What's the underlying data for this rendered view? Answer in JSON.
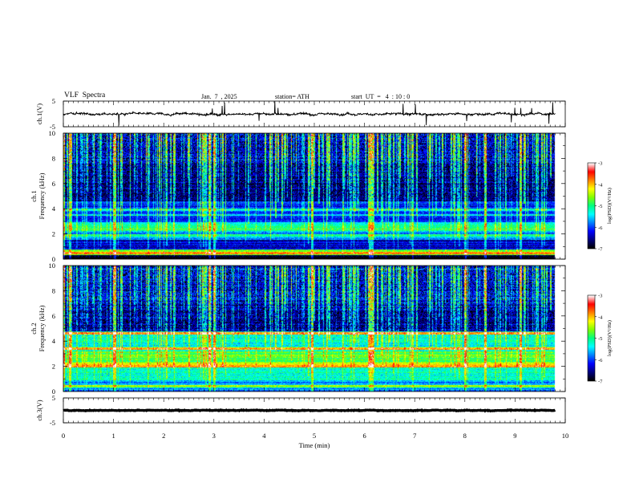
{
  "header": {
    "title": "VLF  Spectra",
    "date": "Jan.  7  , 2025",
    "station": "station= ATH",
    "start": "start  UT  =   4  : 10 : 0"
  },
  "chart_data": {
    "type": "spectrogram",
    "xlabel": "Time  (min)",
    "xlim": [
      0,
      10
    ],
    "xticks": [
      "0",
      "1",
      "2",
      "3",
      "4",
      "5",
      "6",
      "7",
      "8",
      "9",
      "10"
    ],
    "panels": [
      {
        "id": "ch1-waveform",
        "type": "line",
        "ylabel": "ch.1(V)",
        "ylim": [
          -5,
          5
        ],
        "yticks": [
          "5",
          "-5"
        ],
        "baseline_v": 0,
        "noise_amplitude_v": 1.1,
        "data_end_min": 9.8
      },
      {
        "id": "ch1-spectrogram",
        "type": "heatmap",
        "ylabel": "ch.1\nFrequency  (kHz)",
        "ylim": [
          0,
          10
        ],
        "yticks": [
          "0",
          "2",
          "4",
          "6",
          "8",
          "10"
        ],
        "data_end_min": 9.8,
        "bands_khz": [
          {
            "from": 0.0,
            "to": 0.35,
            "level": -7.0
          },
          {
            "from": 0.35,
            "to": 0.75,
            "level": -4.6
          },
          {
            "from": 0.75,
            "to": 1.5,
            "level": -6.4
          },
          {
            "from": 1.5,
            "to": 2.3,
            "level": -5.8
          },
          {
            "from": 2.3,
            "to": 2.9,
            "level": -5.2
          },
          {
            "from": 2.9,
            "to": 4.6,
            "level": -6.1
          },
          {
            "from": 4.6,
            "to": 7.5,
            "level": -6.5
          },
          {
            "from": 7.5,
            "to": 10.0,
            "level": -6.2
          }
        ],
        "lines_khz": [
          {
            "f": 0.5,
            "level": -3.9
          },
          {
            "f": 1.9,
            "level": -5.0
          },
          {
            "f": 2.3,
            "level": -4.8
          },
          {
            "f": 3.5,
            "level": -5.5
          },
          {
            "f": 3.9,
            "level": -5.3
          }
        ]
      },
      {
        "id": "ch2-spectrogram",
        "type": "heatmap",
        "ylabel": "ch.2\nFrequency  (kHz)",
        "ylim": [
          0,
          10
        ],
        "yticks": [
          "0",
          "2",
          "4",
          "6",
          "8",
          "10"
        ],
        "data_end_min": 9.8,
        "bands_khz": [
          {
            "from": 0.0,
            "to": 0.9,
            "level": -5.7
          },
          {
            "from": 0.9,
            "to": 2.1,
            "level": -5.2
          },
          {
            "from": 2.1,
            "to": 3.2,
            "level": -4.8
          },
          {
            "from": 3.2,
            "to": 4.8,
            "level": -5.3
          },
          {
            "from": 4.8,
            "to": 7.0,
            "level": -6.4
          },
          {
            "from": 7.0,
            "to": 10.0,
            "level": -6.1
          }
        ],
        "lines_khz": [
          {
            "f": 0.4,
            "level": -4.6
          },
          {
            "f": 2.0,
            "level": -3.8
          },
          {
            "f": 2.2,
            "level": -4.2
          },
          {
            "f": 3.4,
            "level": -4.0
          },
          {
            "f": 4.6,
            "level": -4.1
          }
        ]
      },
      {
        "id": "ch3-waveform",
        "type": "line",
        "ylabel": "ch.3(V)",
        "ylim": [
          -5,
          5
        ],
        "yticks": [
          "5",
          "-5"
        ],
        "baseline_v": 0,
        "noise_amplitude_v": 0.3,
        "data_end_min": 9.8
      }
    ],
    "colorbars": [
      {
        "label": "log(PSD)(V²/Hz)",
        "range": [
          -7,
          -3
        ],
        "ticks": [
          "-3",
          "-4",
          "-5",
          "-6",
          "-7"
        ]
      },
      {
        "label": "log(PSD)(V²/Hz)",
        "range": [
          -7,
          -3
        ],
        "ticks": [
          "-3",
          "-4",
          "-5",
          "-6",
          "-7"
        ]
      }
    ],
    "colormap": [
      "#000000",
      "#00007f",
      "#0000ff",
      "#0080ff",
      "#00ffff",
      "#00ff80",
      "#80ff00",
      "#ffff00",
      "#ff8000",
      "#ff0000",
      "#ffffff"
    ],
    "grid": false
  }
}
